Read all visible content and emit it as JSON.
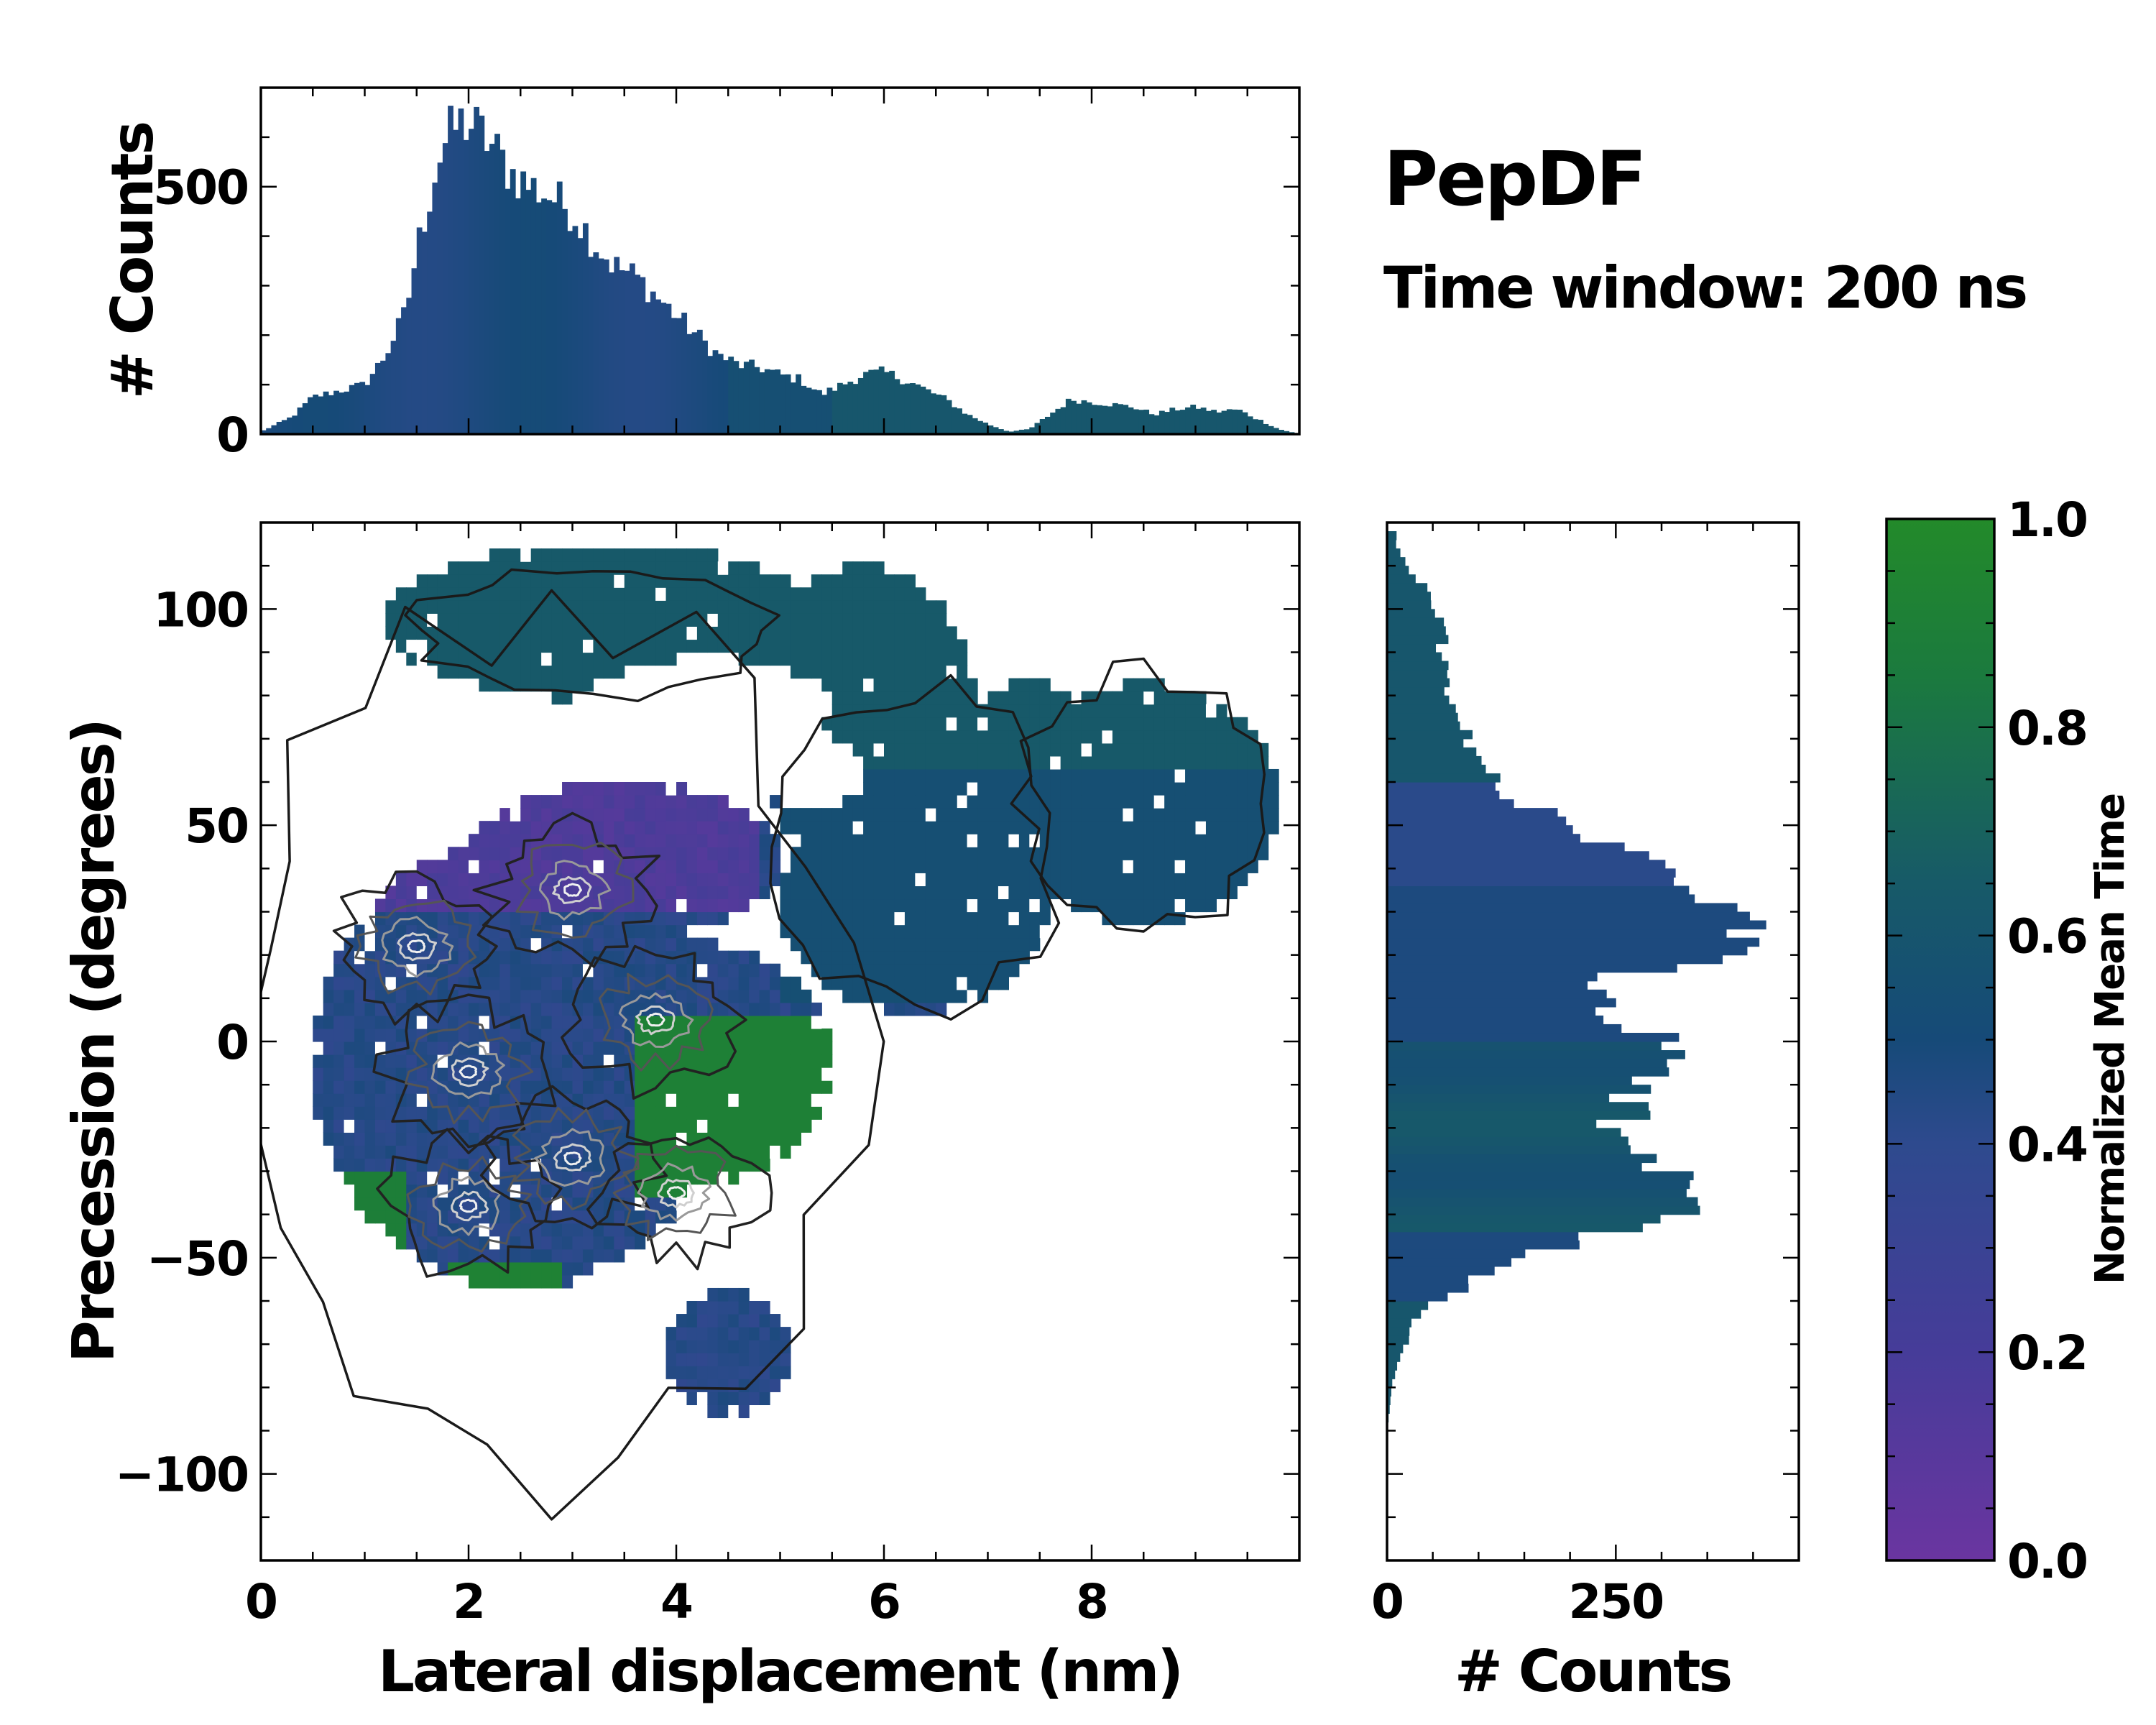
{
  "figure": {
    "title": "PepDF",
    "subtitle": "Time window: 200 ns"
  },
  "colors": {
    "cmap": [
      "#6a35a0",
      "#3f3f96",
      "#2c4a8c",
      "#164a78",
      "#175a68",
      "#1b7a3e",
      "#238a2a"
    ]
  },
  "chart_data": [
    {
      "id": "top-histogram",
      "type": "bar",
      "title": "",
      "xlabel": "",
      "ylabel": "# Counts",
      "xlim": [
        0,
        10
      ],
      "ylim": [
        0,
        700
      ],
      "yticks": [
        0,
        500
      ],
      "ytick_labels": [
        "0",
        "500"
      ],
      "bin_width": 0.05,
      "profile_x": [
        0,
        0.3,
        0.5,
        0.8,
        1.0,
        1.2,
        1.4,
        1.5,
        1.6,
        1.7,
        1.8,
        1.9,
        2.0,
        2.1,
        2.2,
        2.4,
        2.6,
        2.8,
        3.0,
        3.2,
        3.4,
        3.6,
        3.8,
        4.0,
        4.2,
        4.4,
        4.6,
        4.8,
        5.0,
        5.2,
        5.4,
        5.6,
        5.8,
        6.0,
        6.2,
        6.4,
        6.6,
        6.8,
        7.0,
        7.2,
        7.4,
        7.6,
        7.8,
        8.0,
        8.2,
        8.4,
        8.6,
        8.8,
        9.0,
        9.2,
        9.4,
        9.6,
        9.8,
        10.0
      ],
      "profile_y": [
        5,
        35,
        75,
        90,
        100,
        160,
        250,
        370,
        460,
        550,
        600,
        625,
        630,
        610,
        590,
        530,
        500,
        480,
        450,
        390,
        340,
        320,
        280,
        240,
        200,
        160,
        140,
        135,
        120,
        110,
        80,
        100,
        120,
        125,
        110,
        90,
        70,
        40,
        20,
        5,
        10,
        40,
        70,
        65,
        60,
        55,
        40,
        50,
        55,
        45,
        50,
        30,
        10,
        0
      ]
    },
    {
      "id": "right-histogram",
      "type": "bar",
      "orientation": "horizontal",
      "xlabel": "# Counts",
      "ylabel": "",
      "xlim": [
        0,
        450
      ],
      "xticks": [
        0,
        250
      ],
      "xtick_labels": [
        "0",
        "250"
      ],
      "ylim": [
        -120,
        120
      ],
      "bin_width": 2,
      "profile_y": [
        -90,
        -85,
        -80,
        -75,
        -70,
        -65,
        -60,
        -55,
        -50,
        -45,
        -40,
        -35,
        -30,
        -25,
        -20,
        -15,
        -10,
        -5,
        0,
        5,
        10,
        15,
        20,
        25,
        30,
        35,
        40,
        45,
        50,
        55,
        60,
        65,
        70,
        75,
        80,
        85,
        90,
        95,
        100,
        105,
        110,
        115
      ],
      "profile_x": [
        0,
        3,
        5,
        10,
        20,
        30,
        50,
        100,
        150,
        220,
        300,
        330,
        300,
        260,
        250,
        270,
        280,
        290,
        300,
        260,
        220,
        240,
        370,
        400,
        360,
        360,
        330,
        260,
        200,
        150,
        120,
        100,
        90,
        75,
        70,
        65,
        60,
        60,
        55,
        40,
        20,
        10
      ]
    },
    {
      "id": "main-heatmap",
      "type": "heatmap",
      "xlabel": "Lateral displacement (nm)",
      "ylabel": "Precession (degrees)",
      "xlim": [
        0,
        10
      ],
      "ylim": [
        -120,
        120
      ],
      "xticks": [
        0,
        2,
        4,
        6,
        8
      ],
      "xtick_labels": [
        "0",
        "2",
        "4",
        "6",
        "8"
      ],
      "yticks": [
        -100,
        -50,
        0,
        50,
        100
      ],
      "ytick_labels": [
        "−100",
        "−50",
        "0",
        "50",
        "100"
      ],
      "density_peaks": [
        [
          1.5,
          22
        ],
        [
          2.0,
          -38
        ],
        [
          3.0,
          35
        ],
        [
          2.0,
          -7
        ],
        [
          3.0,
          -27
        ],
        [
          3.8,
          5
        ],
        [
          4.0,
          -35
        ]
      ]
    },
    {
      "id": "colorbar",
      "type": "colorbar",
      "label": "Normalized Mean Time",
      "ylim": [
        0,
        1
      ],
      "ticks": [
        0.0,
        0.2,
        0.4,
        0.6,
        0.8,
        1.0
      ],
      "tick_labels": [
        "0.0",
        "0.2",
        "0.4",
        "0.6",
        "0.8",
        "1.0"
      ]
    }
  ]
}
